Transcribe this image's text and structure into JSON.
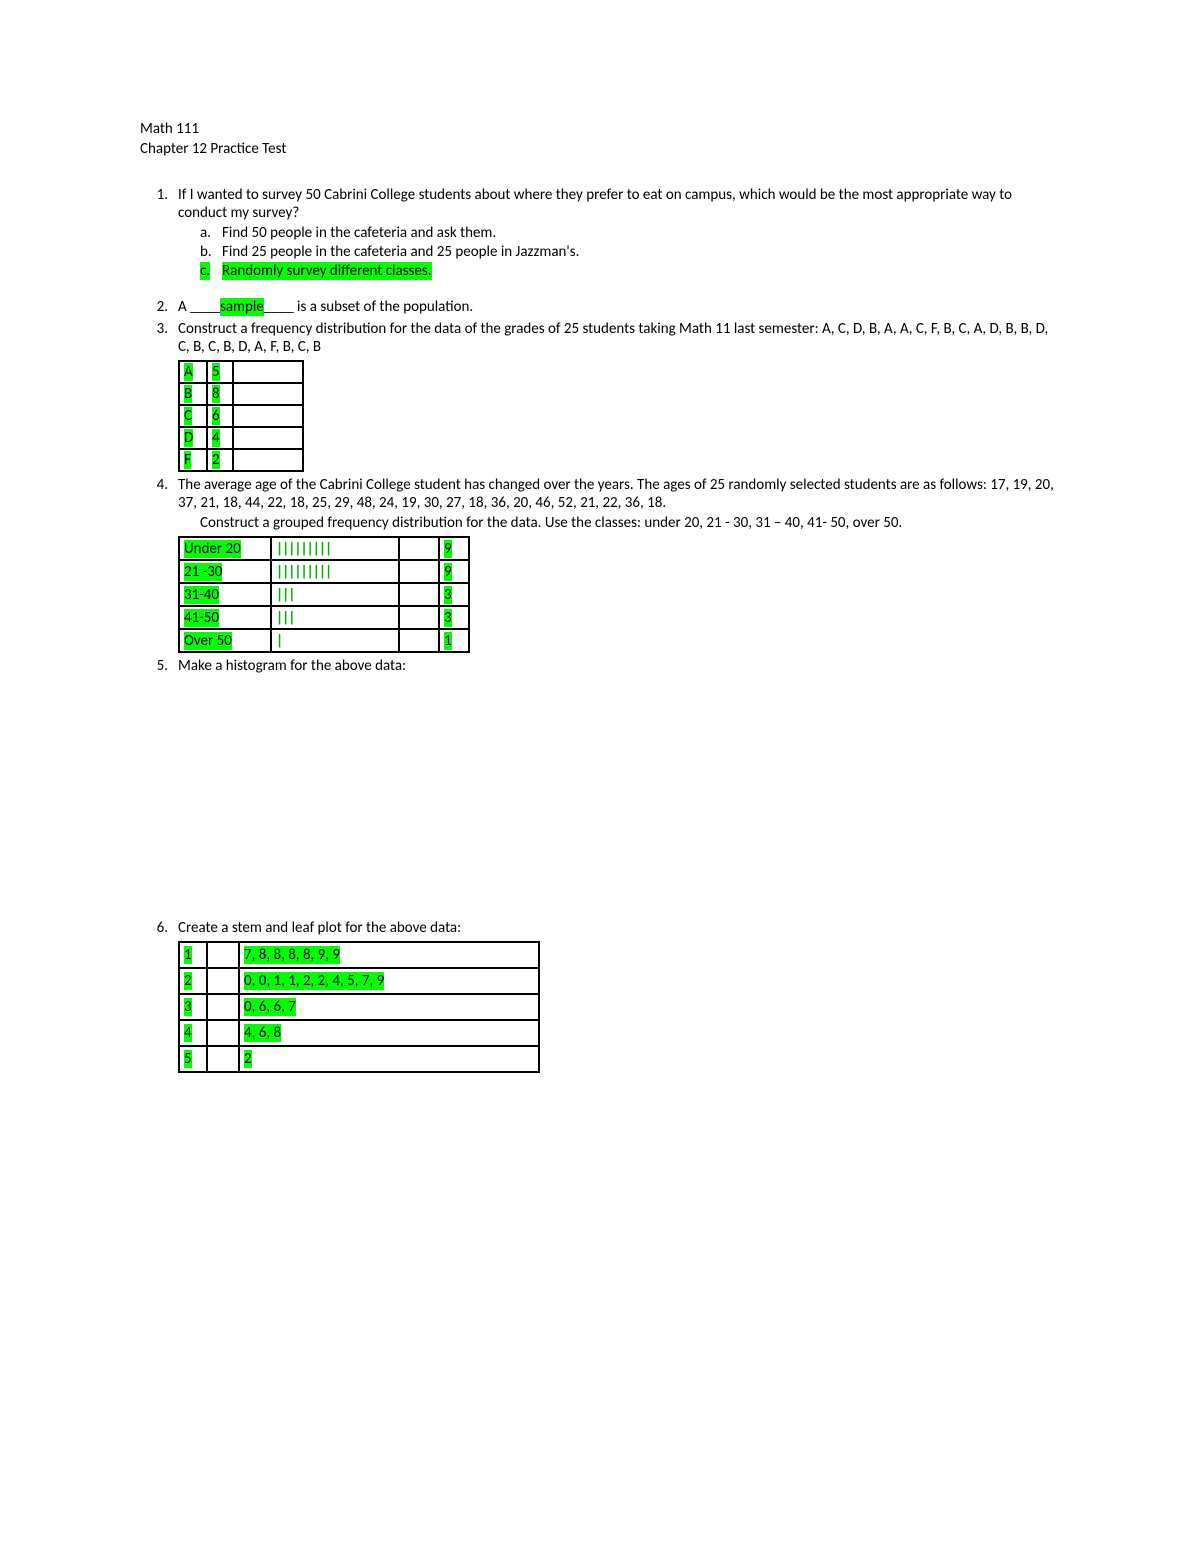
{
  "header": {
    "course": "Math 111",
    "title": "Chapter 12 Practice Test"
  },
  "highlight_color": "#00ff00",
  "q1": {
    "num": "1.",
    "text": "If I wanted to survey 50 Cabrini College students about where they prefer to eat on campus, which would be the most appropriate way to conduct my survey?",
    "a_letter": "a.",
    "a_text": "Find 50 people in the cafeteria and ask them.",
    "b_letter": "b.",
    "b_text": "Find 25 people in the cafeteria and 25 people in Jazzman's.",
    "c_letter": "c.",
    "c_text": "Randomly survey different classes."
  },
  "q2": {
    "num": "2.",
    "pre": "A ____",
    "answer": "sample",
    "post": "____ is a subset of the population."
  },
  "q3": {
    "num": "3.",
    "text": "Construct a frequency distribution for the data of the grades of 25 students taking Math 11 last semester: A, C, D, B, A, A, C, F, B, C, A, D, B, B, D, C, B, C, B, D, A, F, B, C, B",
    "rows": [
      {
        "grade": "A",
        "count": "5"
      },
      {
        "grade": "B",
        "count": "8"
      },
      {
        "grade": "C",
        "count": "6"
      },
      {
        "grade": "D",
        "count": "4"
      },
      {
        "grade": "F",
        "count": "2"
      }
    ]
  },
  "q4": {
    "num": "4.",
    "text1": " The average age of the Cabrini College student has changed over the years.  The ages of 25 randomly selected students are as follows: 17, 19, 20, 37, 21, 18, 44, 22, 18, 25, 29, 48, 24, 19, 30, 27, 18, 36, 20, 46, 52, 21, 22, 36, 18.",
    "text2": "Construct a grouped frequency distribution for the data.  Use the classes: under 20, 21 - 30, 31 – 40, 41- 50, over 50.",
    "rows": [
      {
        "cls": "Under 20",
        "tally": "|||||||||",
        "count": "9"
      },
      {
        "cls": "21 -30",
        "tally": "|||||||||",
        "count": "9"
      },
      {
        "cls": "31-40",
        "tally": "|||",
        "count": "3"
      },
      {
        "cls": "41-50",
        "tally": "|||",
        "count": "3"
      },
      {
        "cls": "Over 50",
        "tally": "|",
        "count": "1"
      }
    ]
  },
  "q5": {
    "num": "5.",
    "text": "Make a histogram for the above data:"
  },
  "q6": {
    "num": "6.",
    "text": "Create a stem and leaf plot for the above data:",
    "rows": [
      {
        "stem": "1",
        "leaves": "7, 8, 8, 8, 8, 9, 9"
      },
      {
        "stem": "2",
        "leaves": "0, 0, 1, 1, 2, 2, 4, 5, 7, 9"
      },
      {
        "stem": "3",
        "leaves": "0, 6, 6, 7"
      },
      {
        "stem": "4",
        "leaves": "4, 6, 8"
      },
      {
        "stem": "5",
        "leaves": "2"
      }
    ]
  }
}
